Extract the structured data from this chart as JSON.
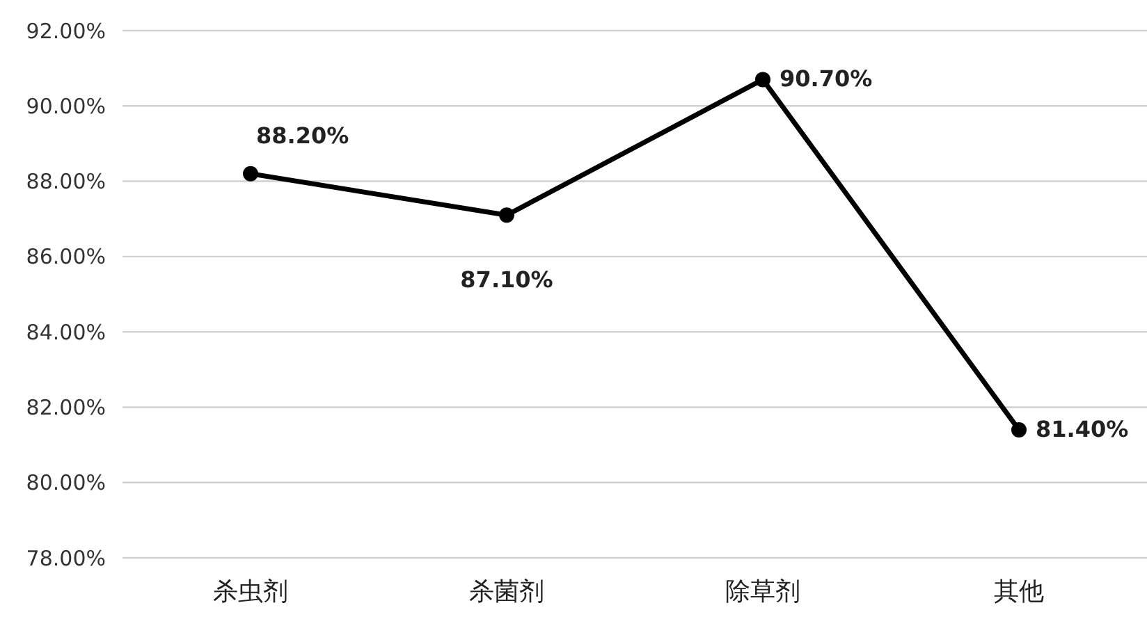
{
  "chart_data": {
    "type": "line",
    "categories": [
      "杀虫剂",
      "杀菌剂",
      "除草剂",
      "其他"
    ],
    "series": [
      {
        "color": "#000000",
        "values": [
          88.2,
          87.1,
          90.7,
          81.4
        ],
        "value_labels": [
          "88.20%",
          "87.10%",
          "90.70%",
          "81.40%"
        ]
      }
    ],
    "ylim": [
      78,
      92
    ],
    "yticks": [
      {
        "value": 78,
        "label": "78.00%"
      },
      {
        "value": 80,
        "label": "80.00%"
      },
      {
        "value": 82,
        "label": "82.00%"
      },
      {
        "value": 84,
        "label": "84.00%"
      },
      {
        "value": 86,
        "label": "86.00%"
      },
      {
        "value": 88,
        "label": "88.00%"
      },
      {
        "value": 90,
        "label": "90.00%"
      },
      {
        "value": 92,
        "label": "92.00%"
      }
    ],
    "grid": "y",
    "marker": "circle",
    "line_style": "solid"
  }
}
